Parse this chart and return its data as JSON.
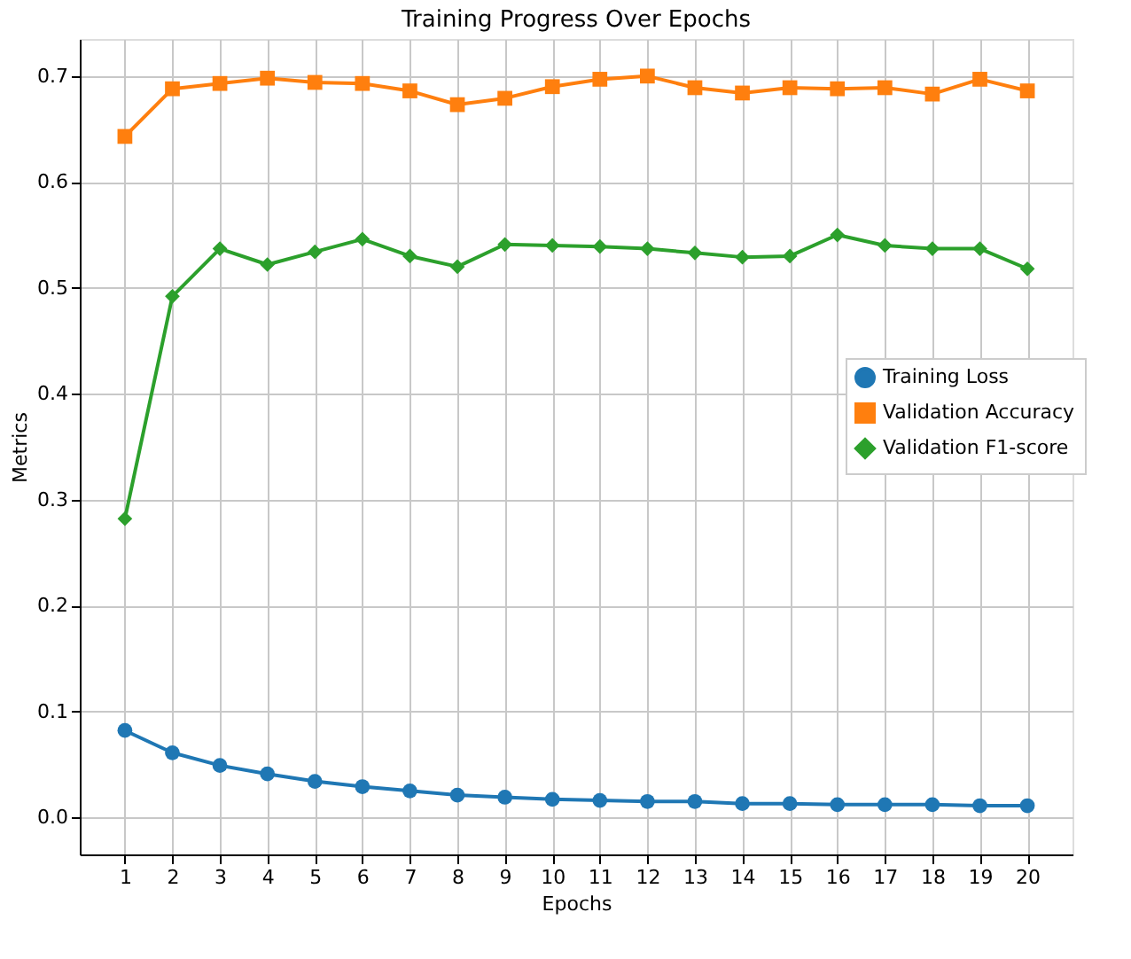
{
  "chart_data": {
    "type": "line",
    "title": "Training Progress Over Epochs",
    "xlabel": "Epochs",
    "ylabel": "Metrics",
    "x": [
      1,
      2,
      3,
      4,
      5,
      6,
      7,
      8,
      9,
      10,
      11,
      12,
      13,
      14,
      15,
      16,
      17,
      18,
      19,
      20
    ],
    "xlim": [
      0.05,
      20.95
    ],
    "xticks": [
      1,
      2,
      3,
      4,
      5,
      6,
      7,
      8,
      9,
      10,
      11,
      12,
      13,
      14,
      15,
      16,
      17,
      18,
      19,
      20
    ],
    "ylim": [
      -0.035,
      0.735
    ],
    "yticks": [
      {
        "value": 0,
        "label": "0.0"
      },
      {
        "value": 0.1,
        "label": "0.1"
      },
      {
        "value": 0.2,
        "label": "0.2"
      },
      {
        "value": 0.3,
        "label": "0.3"
      },
      {
        "value": 0.4,
        "label": "0.4"
      },
      {
        "value": 0.5,
        "label": "0.5"
      },
      {
        "value": 0.6,
        "label": "0.6"
      },
      {
        "value": 0.7,
        "label": "0.7"
      }
    ],
    "grid": true,
    "legend": "right",
    "line_style": "solid",
    "series": [
      {
        "name": "Training Loss",
        "color": "#1f77b4",
        "marker": "circle",
        "values": [
          0.082,
          0.061,
          0.049,
          0.041,
          0.034,
          0.029,
          0.025,
          0.021,
          0.019,
          0.017,
          0.016,
          0.015,
          0.015,
          0.013,
          0.013,
          0.012,
          0.012,
          0.012,
          0.011,
          0.011
        ]
      },
      {
        "name": "Validation Accuracy",
        "color": "#ff7f0e",
        "marker": "square",
        "values": [
          0.643,
          0.688,
          0.693,
          0.698,
          0.694,
          0.693,
          0.686,
          0.673,
          0.679,
          0.69,
          0.697,
          0.7,
          0.689,
          0.684,
          0.689,
          0.688,
          0.689,
          0.683,
          0.697,
          0.686
        ]
      },
      {
        "name": "Validation F1-score",
        "color": "#2ca02c",
        "marker": "diamond",
        "values": [
          0.282,
          0.492,
          0.537,
          0.522,
          0.534,
          0.546,
          0.53,
          0.52,
          0.541,
          0.54,
          0.539,
          0.537,
          0.533,
          0.529,
          0.53,
          0.55,
          0.54,
          0.537,
          0.537,
          0.518
        ]
      }
    ]
  }
}
